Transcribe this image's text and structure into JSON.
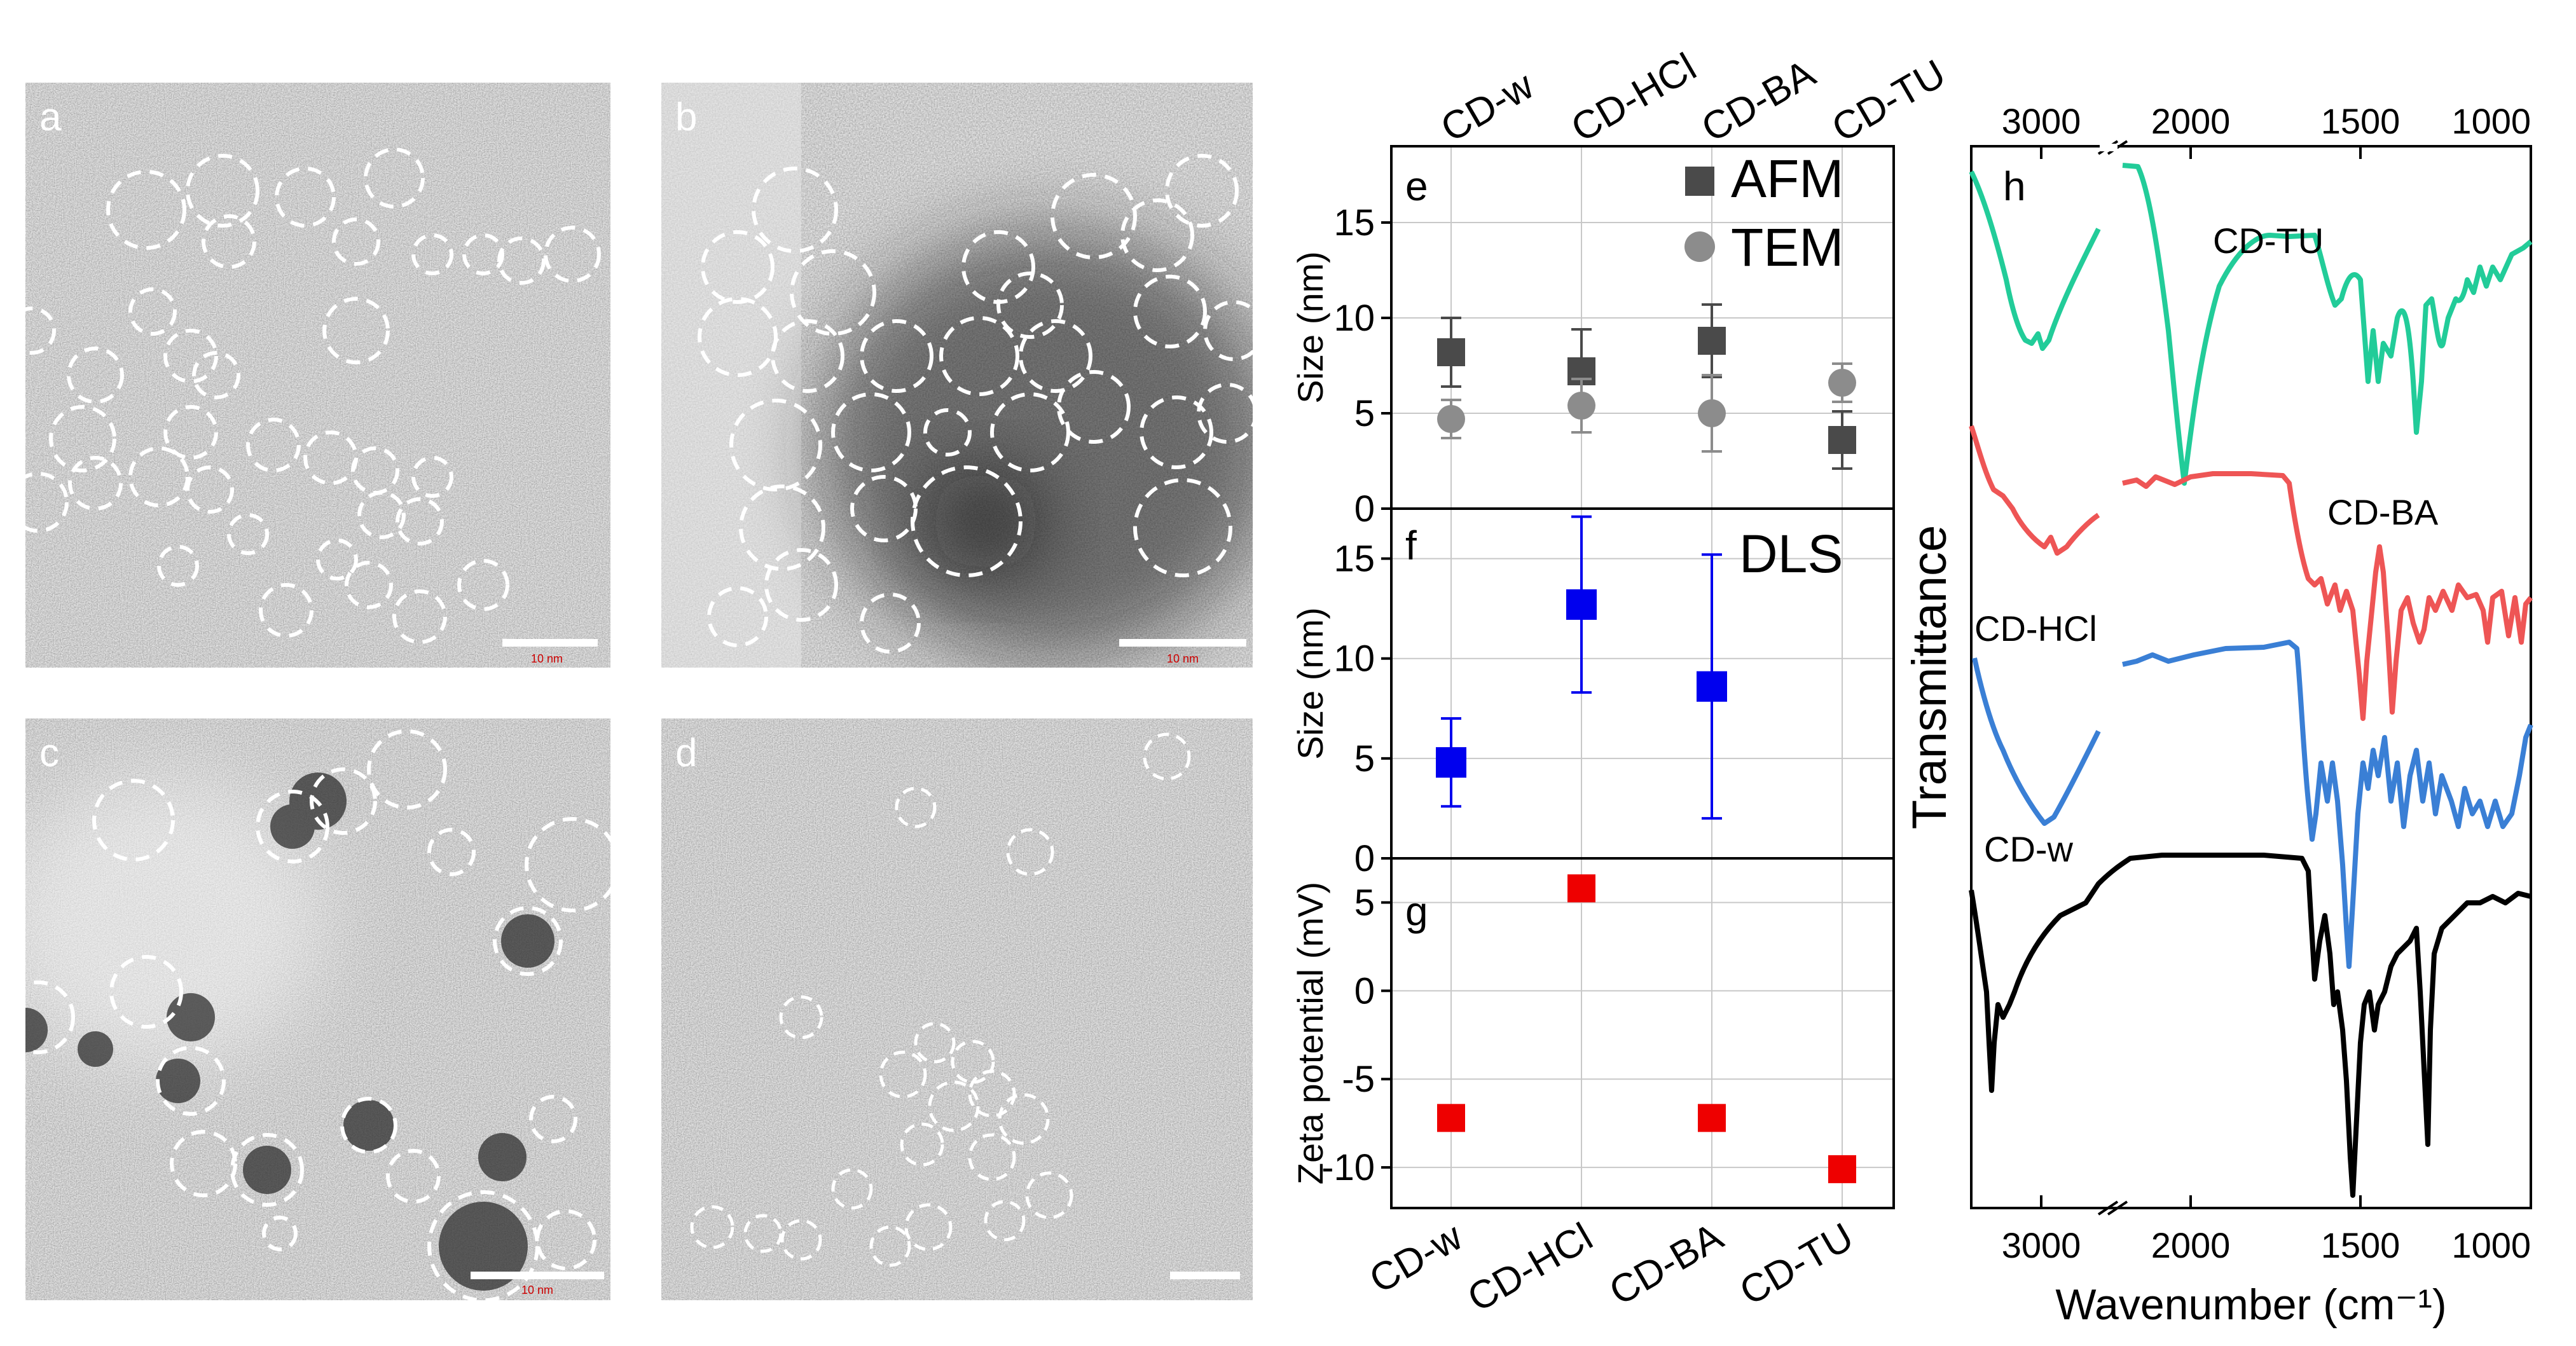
{
  "tem_panels": [
    {
      "letter": "a",
      "scale_text": "10 nm"
    },
    {
      "letter": "b",
      "scale_text": "10 nm"
    },
    {
      "letter": "c",
      "scale_text": "10 nm"
    },
    {
      "letter": "d",
      "scale_text": ""
    }
  ],
  "colors": {
    "afm": "#4a4a4a",
    "tem": "#8c8c8c",
    "dls": "#0000ee",
    "zeta": "#ee0000",
    "cd_tu": "#22cc99",
    "cd_ba": "#ee5555",
    "cd_hcl": "#3a7fd5",
    "cd_w": "#000000"
  },
  "chart_data": [
    {
      "panel": "e",
      "type": "scatter",
      "categories": [
        "CD-w",
        "CD-HCl",
        "CD-BA",
        "CD-TU"
      ],
      "ylabel": "Size (nm)",
      "ylim": [
        0,
        19
      ],
      "yticks": [
        "0",
        "5",
        "10",
        "15"
      ],
      "legend": "top-right",
      "series": [
        {
          "name": "AFM",
          "marker": "square",
          "values": [
            8.2,
            7.2,
            8.8,
            3.6
          ],
          "errors": [
            1.8,
            2.2,
            1.9,
            1.5
          ]
        },
        {
          "name": "TEM",
          "marker": "circle",
          "values": [
            4.7,
            5.4,
            5.0,
            6.6
          ],
          "errors": [
            1.0,
            1.4,
            2.0,
            1.0
          ]
        }
      ]
    },
    {
      "panel": "f",
      "type": "scatter",
      "categories": [
        "CD-w",
        "CD-HCl",
        "CD-BA",
        "CD-TU"
      ],
      "ylabel": "Size (nm)",
      "ylim": [
        0,
        17.5
      ],
      "yticks": [
        "0",
        "5",
        "10",
        "15"
      ],
      "legend": "top-right",
      "series": [
        {
          "name": "DLS",
          "marker": "square",
          "values": [
            4.8,
            12.7,
            8.6,
            null
          ],
          "errors": [
            2.2,
            4.4,
            6.6,
            null
          ]
        }
      ]
    },
    {
      "panel": "g",
      "type": "scatter",
      "categories": [
        "CD-w",
        "CD-HCl",
        "CD-BA",
        "CD-TU"
      ],
      "ylabel": "Zeta potential (mV)",
      "ylim": [
        -12.3,
        7.5
      ],
      "yticks": [
        "5",
        "0",
        "-5",
        "-10"
      ],
      "series": [
        {
          "name": "Zeta",
          "marker": "square",
          "values": [
            -7.2,
            5.8,
            -7.2,
            -10.1
          ]
        }
      ]
    },
    {
      "panel": "h",
      "type": "line",
      "xlabel": "Wavenumber (cm⁻¹)",
      "ylabel": "Transmittance",
      "xticks": [
        "3000",
        "2000",
        "1500",
        "1000"
      ],
      "axis_break": true,
      "series": [
        {
          "name": "CD-TU"
        },
        {
          "name": "CD-BA"
        },
        {
          "name": "CD-HCl"
        },
        {
          "name": "CD-w"
        }
      ]
    }
  ]
}
